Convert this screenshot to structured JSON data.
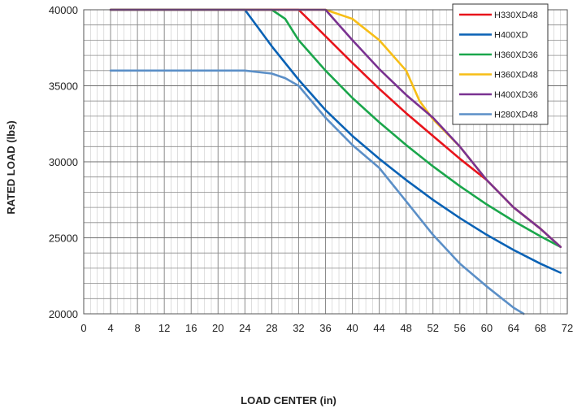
{
  "chart_data": {
    "type": "line",
    "xlabel": "LOAD CENTER (in)",
    "ylabel": "RATED LOAD (lbs)",
    "xlim": [
      0,
      72
    ],
    "ylim": [
      20000,
      40000
    ],
    "x_ticks": [
      "0",
      "4",
      "8",
      "12",
      "16",
      "20",
      "24",
      "28",
      "32",
      "36",
      "40",
      "44",
      "48",
      "52",
      "56",
      "60",
      "64",
      "68",
      "72"
    ],
    "y_ticks": [
      "20000",
      "25000",
      "30000",
      "35000",
      "40000"
    ],
    "grid": true,
    "legend_position": "top-right",
    "series": [
      {
        "name": "H330XD48",
        "color": "#e8141b",
        "points": [
          [
            4,
            40000
          ],
          [
            32,
            40000
          ],
          [
            35,
            38700
          ],
          [
            40,
            36500
          ],
          [
            44,
            34800
          ],
          [
            48,
            33200
          ],
          [
            52,
            31700
          ],
          [
            56,
            30200
          ],
          [
            60,
            28800
          ],
          [
            64,
            27000
          ],
          [
            68,
            25600
          ],
          [
            71,
            24400
          ]
        ]
      },
      {
        "name": "H400XD",
        "color": "#0a62b5",
        "points": [
          [
            4,
            40000
          ],
          [
            24,
            40000
          ],
          [
            28,
            37600
          ],
          [
            32,
            35400
          ],
          [
            36,
            33400
          ],
          [
            40,
            31700
          ],
          [
            44,
            30200
          ],
          [
            48,
            28800
          ],
          [
            52,
            27500
          ],
          [
            56,
            26300
          ],
          [
            60,
            25200
          ],
          [
            64,
            24200
          ],
          [
            68,
            23300
          ],
          [
            71,
            22700
          ]
        ]
      },
      {
        "name": "H360XD36",
        "color": "#1aa64b",
        "points": [
          [
            4,
            40000
          ],
          [
            28,
            40000
          ],
          [
            30,
            39400
          ],
          [
            32,
            38000
          ],
          [
            36,
            36000
          ],
          [
            40,
            34200
          ],
          [
            44,
            32600
          ],
          [
            48,
            31100
          ],
          [
            52,
            29700
          ],
          [
            56,
            28400
          ],
          [
            60,
            27200
          ],
          [
            64,
            26100
          ],
          [
            68,
            25100
          ],
          [
            71,
            24400
          ]
        ]
      },
      {
        "name": "H360XD48",
        "color": "#f7be16",
        "points": [
          [
            4,
            40000
          ],
          [
            36,
            40000
          ],
          [
            40,
            39400
          ],
          [
            44,
            38000
          ],
          [
            48,
            36000
          ],
          [
            50,
            34000
          ],
          [
            52,
            32800
          ],
          [
            56,
            31000
          ],
          [
            60,
            28800
          ],
          [
            64,
            27000
          ],
          [
            68,
            25600
          ],
          [
            71,
            24400
          ]
        ]
      },
      {
        "name": "H400XD36",
        "color": "#7a3291",
        "points": [
          [
            4,
            40000
          ],
          [
            36,
            40000
          ],
          [
            40,
            38000
          ],
          [
            44,
            36100
          ],
          [
            48,
            34400
          ],
          [
            52,
            32900
          ],
          [
            56,
            31000
          ],
          [
            60,
            28800
          ],
          [
            64,
            27000
          ],
          [
            68,
            25600
          ],
          [
            71,
            24400
          ]
        ]
      },
      {
        "name": "H280XD48",
        "color": "#5b8fc7",
        "points": [
          [
            4,
            36000
          ],
          [
            24,
            36000
          ],
          [
            28,
            35800
          ],
          [
            30,
            35500
          ],
          [
            32,
            35000
          ],
          [
            36,
            32900
          ],
          [
            40,
            31100
          ],
          [
            44,
            29600
          ],
          [
            48,
            27400
          ],
          [
            52,
            25200
          ],
          [
            56,
            23300
          ],
          [
            60,
            21800
          ],
          [
            64,
            20400
          ],
          [
            65.5,
            20000
          ]
        ]
      }
    ]
  }
}
